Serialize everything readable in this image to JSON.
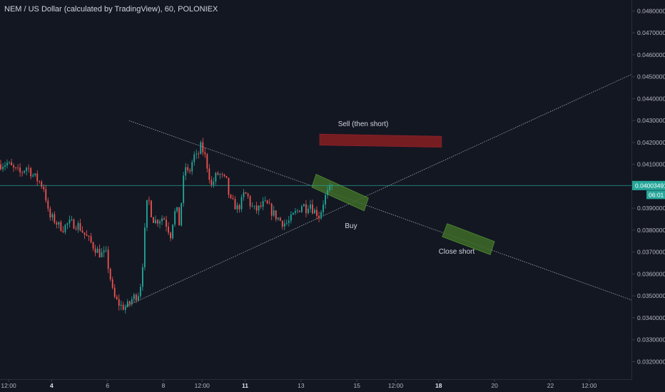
{
  "header": {
    "title": "NEM / US Dollar (calculated by TradingView), 60, POLONIEX"
  },
  "colors": {
    "background": "#131722",
    "up": "#26a69a",
    "down": "#ef5350",
    "price_line": "#26a69a",
    "text": "#d1d4dc",
    "axis_text": "#b2b5be",
    "trendline": "#9598a1",
    "sell_box": "#7b1d23",
    "green_box": "#3f6b28"
  },
  "chart_data": {
    "type": "candlestick",
    "title": "NEM / US Dollar (calculated by TradingView), 60, POLONIEX",
    "ylim": [
      0.0312,
      0.0485
    ],
    "y_ticks": [
      "0.04800000",
      "0.04700000",
      "0.04600000",
      "0.04500000",
      "0.04400000",
      "0.04300000",
      "0.04200000",
      "0.04100000",
      "0.03900000",
      "0.03800000",
      "0.03700000",
      "0.03600000",
      "0.03500000",
      "0.03400000",
      "0.03300000",
      "0.03200000"
    ],
    "x_ticks": [
      "12:00",
      "4",
      "6",
      "8",
      "12:00",
      "11",
      "13",
      "15",
      "12:00",
      "18",
      "20",
      "22",
      "12:00"
    ],
    "x_tick_bold": [
      false,
      true,
      false,
      false,
      false,
      true,
      false,
      false,
      false,
      true,
      false,
      false,
      false
    ],
    "x_tick_t": [
      12,
      72,
      150,
      228,
      282,
      342,
      420,
      498,
      552,
      612,
      690,
      768,
      822
    ],
    "t_range": [
      0,
      882
    ],
    "last_price": "0.04003491",
    "last_price_value": 0.04003491,
    "countdown": "06:01",
    "price_path": [
      [
        0,
        0.041
      ],
      [
        10,
        0.04105
      ],
      [
        18,
        0.0408
      ],
      [
        28,
        0.0406
      ],
      [
        38,
        0.0409
      ],
      [
        46,
        0.0405
      ],
      [
        55,
        0.0402
      ],
      [
        62,
        0.0399
      ],
      [
        68,
        0.0386
      ],
      [
        75,
        0.0385
      ],
      [
        82,
        0.0382
      ],
      [
        88,
        0.0381
      ],
      [
        95,
        0.0383
      ],
      [
        102,
        0.0383
      ],
      [
        110,
        0.0382
      ],
      [
        118,
        0.0378
      ],
      [
        125,
        0.0375
      ],
      [
        132,
        0.0372
      ],
      [
        140,
        0.0369
      ],
      [
        148,
        0.0369
      ],
      [
        154,
        0.0358
      ],
      [
        158,
        0.035
      ],
      [
        164,
        0.0347
      ],
      [
        170,
        0.0345
      ],
      [
        176,
        0.0345
      ],
      [
        180,
        0.0346
      ],
      [
        185,
        0.0349
      ],
      [
        190,
        0.035
      ],
      [
        195,
        0.0352
      ],
      [
        198,
        0.0362
      ],
      [
        200,
        0.0368
      ],
      [
        203,
        0.0385
      ],
      [
        206,
        0.0395
      ],
      [
        209,
        0.0392
      ],
      [
        212,
        0.0386
      ],
      [
        216,
        0.0384
      ],
      [
        222,
        0.0385
      ],
      [
        228,
        0.0386
      ],
      [
        233,
        0.0382
      ],
      [
        238,
        0.0378
      ],
      [
        242,
        0.0386
      ],
      [
        246,
        0.039
      ],
      [
        250,
        0.0383
      ],
      [
        254,
        0.0396
      ],
      [
        258,
        0.041
      ],
      [
        262,
        0.0406
      ],
      [
        266,
        0.0408
      ],
      [
        270,
        0.0414
      ],
      [
        275,
        0.0413
      ],
      [
        280,
        0.0418
      ],
      [
        285,
        0.0415
      ],
      [
        290,
        0.0408
      ],
      [
        295,
        0.04
      ],
      [
        300,
        0.0404
      ],
      [
        305,
        0.0406
      ],
      [
        310,
        0.0404
      ],
      [
        316,
        0.0402
      ],
      [
        321,
        0.0393
      ],
      [
        326,
        0.0392
      ],
      [
        331,
        0.039
      ],
      [
        336,
        0.0392
      ],
      [
        341,
        0.0397
      ],
      [
        346,
        0.0395
      ],
      [
        350,
        0.0391
      ],
      [
        356,
        0.0389
      ],
      [
        362,
        0.039
      ],
      [
        368,
        0.0392
      ],
      [
        374,
        0.0391
      ],
      [
        380,
        0.0388
      ],
      [
        386,
        0.0386
      ],
      [
        392,
        0.0384
      ],
      [
        398,
        0.0383
      ],
      [
        404,
        0.0384
      ],
      [
        410,
        0.0387
      ],
      [
        416,
        0.0389
      ],
      [
        422,
        0.0392
      ],
      [
        427,
        0.039
      ],
      [
        432,
        0.0393
      ],
      [
        437,
        0.0389
      ],
      [
        442,
        0.0388
      ],
      [
        446,
        0.0386
      ],
      [
        450,
        0.0392
      ],
      [
        455,
        0.0396
      ],
      [
        460,
        0.0398
      ],
      [
        464,
        0.04003
      ]
    ],
    "annotations": {
      "sell_label": "Sell (then short)",
      "buy_label": "Buy",
      "close_short_label": "Close short"
    },
    "trendlines": [
      {
        "t": [
          180,
          882
        ],
        "y": [
          0.043,
          0.0348
        ]
      },
      {
        "t": [
          176,
          882
        ],
        "y": [
          0.03453,
          0.04512
        ]
      }
    ],
    "zones": [
      {
        "color": "red",
        "corners": [
          [
            446,
            0.04238
          ],
          [
            616,
            0.04228
          ],
          [
            616,
            0.04178
          ],
          [
            446,
            0.04188
          ]
        ]
      },
      {
        "color": "green",
        "corners": [
          [
            441,
            0.04055
          ],
          [
            514,
            0.03947
          ],
          [
            508,
            0.03888
          ],
          [
            435,
            0.03996
          ]
        ]
      },
      {
        "color": "green",
        "corners": [
          [
            624,
            0.0383
          ],
          [
            690,
            0.03748
          ],
          [
            684,
            0.03688
          ],
          [
            617,
            0.0377
          ]
        ]
      }
    ],
    "grid": false,
    "legend": "none"
  }
}
